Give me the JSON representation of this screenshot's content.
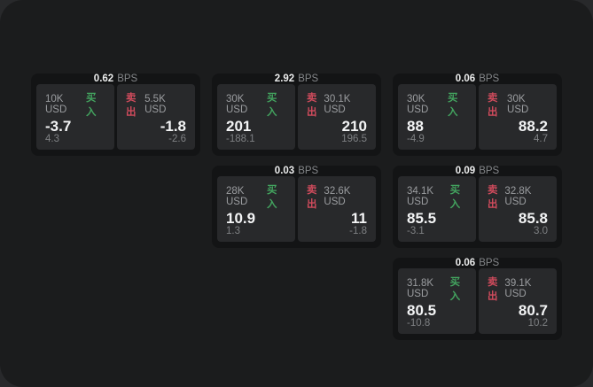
{
  "colors": {
    "backdrop": "#28292b",
    "surface": "#1b1c1d",
    "card_bg": "#131415",
    "panel_bg": "#28292b",
    "buy_green": "#43a45f",
    "sell_red": "#cf4b5c",
    "primary_text": "#f3f4f5",
    "secondary_text": "#9b9da0",
    "muted_text": "#7e8083"
  },
  "cards": [
    {
      "spread": "0.62",
      "unit": "BPS",
      "buy": {
        "amount": "10K USD",
        "side_label": "买入",
        "price": "-3.7",
        "change": "4.3"
      },
      "sell": {
        "side_label": "卖出",
        "amount": "5.5K USD",
        "price": "-1.8",
        "change": "-2.6"
      }
    },
    {
      "spread": "2.92",
      "unit": "BPS",
      "buy": {
        "amount": "30K USD",
        "side_label": "买入",
        "price": "201",
        "change": "-188.1"
      },
      "sell": {
        "side_label": "卖出",
        "amount": "30.1K USD",
        "price": "210",
        "change": "196.5"
      }
    },
    {
      "spread": "0.06",
      "unit": "BPS",
      "buy": {
        "amount": "30K USD",
        "side_label": "买入",
        "price": "88",
        "change": "-4.9"
      },
      "sell": {
        "side_label": "卖出",
        "amount": "30K USD",
        "price": "88.2",
        "change": "4.7"
      }
    },
    {
      "spread": "0.03",
      "unit": "BPS",
      "buy": {
        "amount": "28K USD",
        "side_label": "买入",
        "price": "10.9",
        "change": "1.3"
      },
      "sell": {
        "side_label": "卖出",
        "amount": "32.6K USD",
        "price": "11",
        "change": "-1.8"
      }
    },
    {
      "spread": "0.09",
      "unit": "BPS",
      "buy": {
        "amount": "34.1K USD",
        "side_label": "买入",
        "price": "85.5",
        "change": "-3.1"
      },
      "sell": {
        "side_label": "卖出",
        "amount": "32.8K USD",
        "price": "85.8",
        "change": "3.0"
      }
    },
    {
      "spread": "0.06",
      "unit": "BPS",
      "buy": {
        "amount": "31.8K USD",
        "side_label": "买入",
        "price": "80.5",
        "change": "-10.8"
      },
      "sell": {
        "side_label": "卖出",
        "amount": "39.1K USD",
        "price": "80.7",
        "change": "10.2"
      }
    }
  ]
}
